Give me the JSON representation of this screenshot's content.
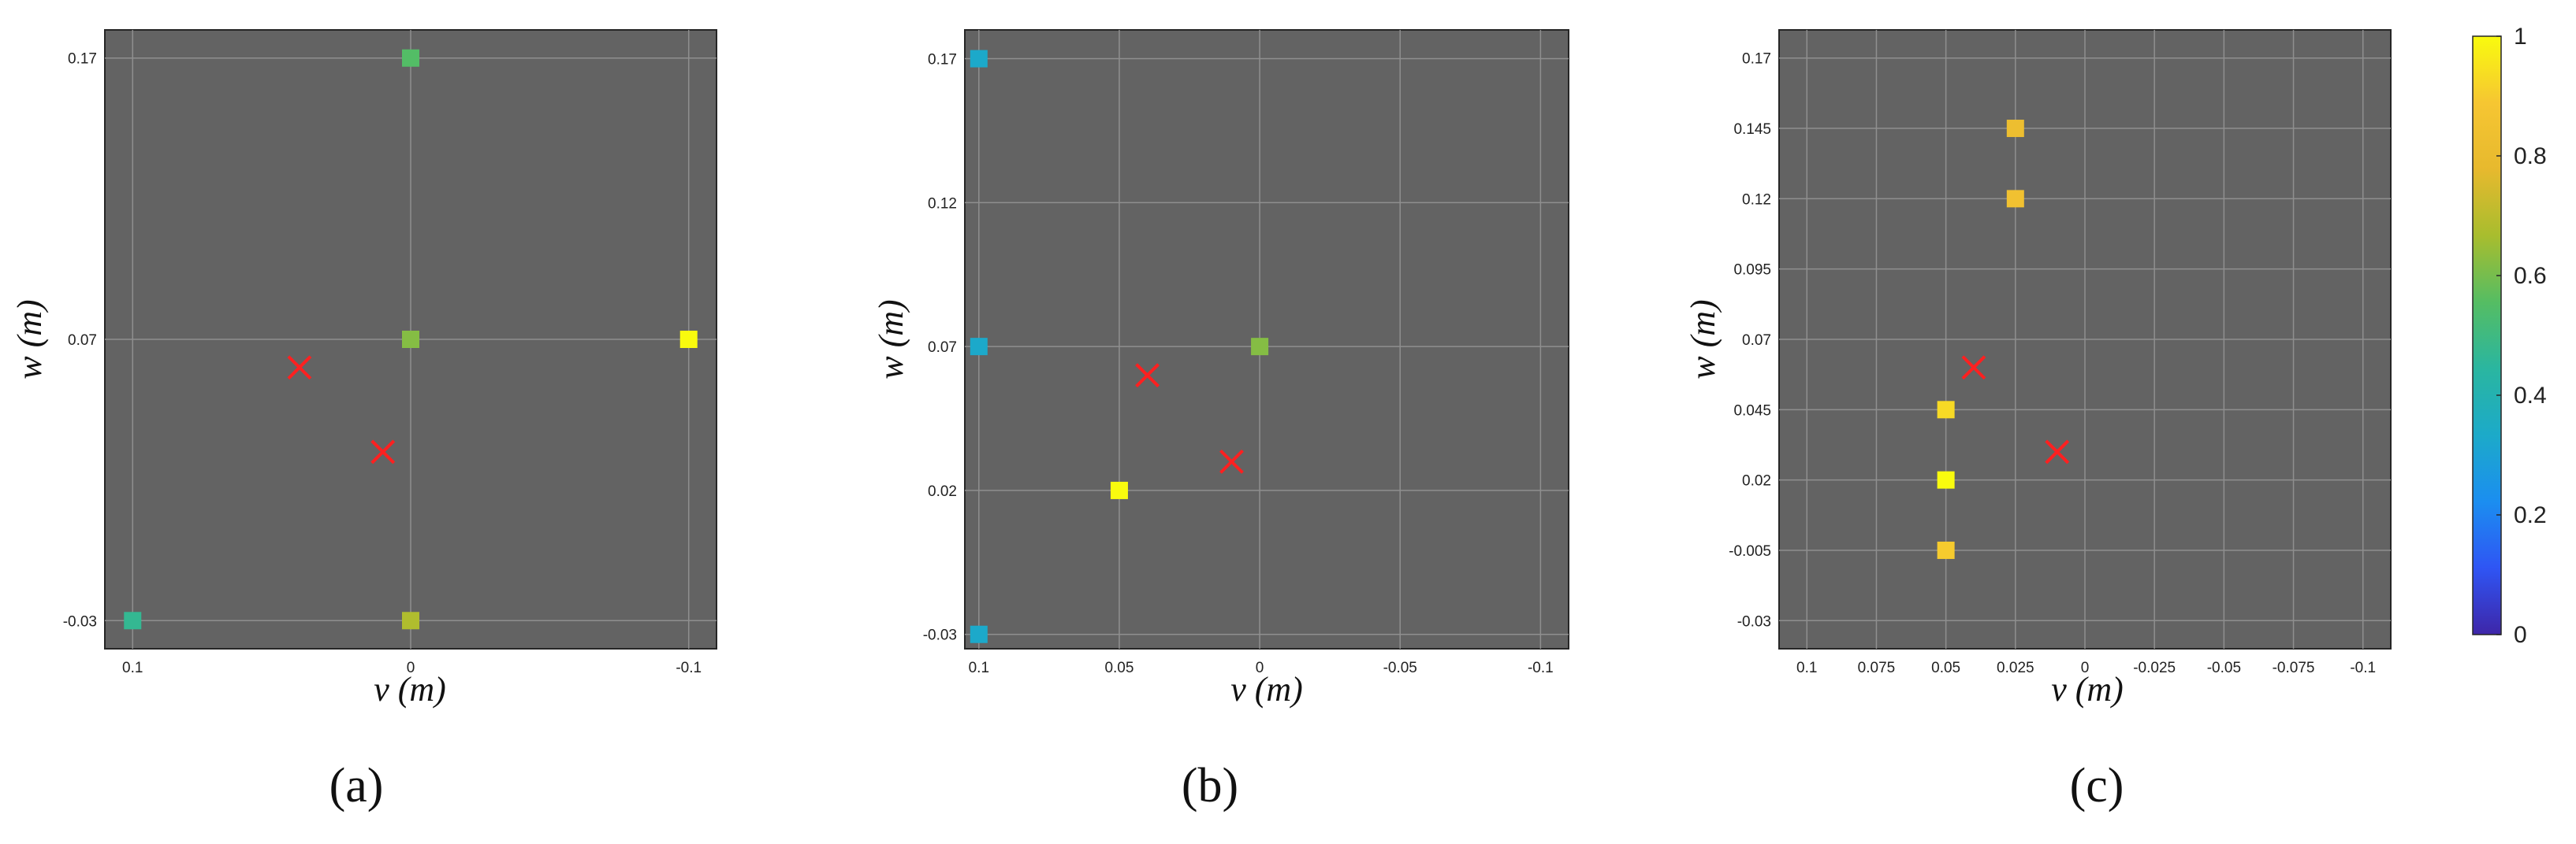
{
  "chart_data": [
    {
      "type": "scatter",
      "panel_label": "(a)",
      "xlabel": "v (m)",
      "ylabel": "w (m)",
      "xlim": [
        0.11,
        -0.11
      ],
      "ylim": [
        -0.04,
        0.18
      ],
      "x_reversed": true,
      "xticks": [
        0.1,
        0,
        -0.1
      ],
      "xtick_labels": [
        "0.1",
        "0",
        "-0.1"
      ],
      "yticks": [
        -0.03,
        0.07,
        0.17
      ],
      "ytick_labels": [
        "-0.03",
        "0.07",
        "0.17"
      ],
      "grid": true,
      "background": "#636363",
      "squares": [
        {
          "x": 0.0,
          "y": 0.17,
          "c": 0.55
        },
        {
          "x": 0.0,
          "y": 0.07,
          "c": 0.62
        },
        {
          "x": -0.1,
          "y": 0.07,
          "c": 1.0
        },
        {
          "x": 0.1,
          "y": -0.03,
          "c": 0.47
        },
        {
          "x": 0.0,
          "y": -0.03,
          "c": 0.68
        }
      ],
      "crosses": [
        {
          "x": 0.04,
          "y": 0.06
        },
        {
          "x": 0.01,
          "y": 0.03
        }
      ]
    },
    {
      "type": "scatter",
      "panel_label": "(b)",
      "xlabel": "v (m)",
      "ylabel": "w (m)",
      "xlim": [
        0.105,
        -0.11
      ],
      "ylim": [
        -0.035,
        0.18
      ],
      "x_reversed": true,
      "xticks": [
        0.1,
        0.05,
        0,
        -0.05,
        -0.1
      ],
      "xtick_labels": [
        "0.1",
        "0.05",
        "0",
        "-0.05",
        "-0.1"
      ],
      "yticks": [
        -0.03,
        0.02,
        0.07,
        0.12,
        0.17
      ],
      "ytick_labels": [
        "-0.03",
        "0.02",
        "0.07",
        "0.12",
        "0.17"
      ],
      "grid": true,
      "background": "#636363",
      "squares": [
        {
          "x": 0.1,
          "y": 0.17,
          "c": 0.33
        },
        {
          "x": 0.1,
          "y": 0.07,
          "c": 0.33
        },
        {
          "x": 0.0,
          "y": 0.07,
          "c": 0.62
        },
        {
          "x": 0.05,
          "y": 0.02,
          "c": 1.0
        },
        {
          "x": 0.1,
          "y": -0.03,
          "c": 0.33
        }
      ],
      "crosses": [
        {
          "x": 0.04,
          "y": 0.06
        },
        {
          "x": 0.01,
          "y": 0.03
        }
      ]
    },
    {
      "type": "scatter",
      "panel_label": "(c)",
      "xlabel": "v (m)",
      "ylabel": "w (m)",
      "xlim": [
        0.11,
        -0.11
      ],
      "ylim": [
        -0.04,
        0.18
      ],
      "x_reversed": true,
      "xticks": [
        0.1,
        0.075,
        0.05,
        0.025,
        0,
        -0.025,
        -0.05,
        -0.075,
        -0.1
      ],
      "xtick_labels": [
        "0.1",
        "0.075",
        "0.05",
        "0.025",
        "0",
        "-0.025",
        "-0.05",
        "-0.075",
        "-0.1"
      ],
      "yticks": [
        -0.03,
        -0.005,
        0.02,
        0.045,
        0.07,
        0.095,
        0.12,
        0.145,
        0.17
      ],
      "ytick_labels": [
        "-0.03",
        "-0.005",
        "0.02",
        "0.045",
        "0.07",
        "0.095",
        "0.12",
        "0.145",
        "0.17"
      ],
      "grid": true,
      "background": "#636363",
      "squares": [
        {
          "x": 0.025,
          "y": 0.145,
          "c": 0.82
        },
        {
          "x": 0.025,
          "y": 0.12,
          "c": 0.85
        },
        {
          "x": 0.05,
          "y": 0.045,
          "c": 0.93
        },
        {
          "x": 0.05,
          "y": 0.02,
          "c": 1.0
        },
        {
          "x": 0.05,
          "y": -0.005,
          "c": 0.9
        }
      ],
      "crosses": [
        {
          "x": 0.04,
          "y": 0.06
        },
        {
          "x": 0.01,
          "y": 0.03
        }
      ]
    }
  ],
  "colorbar": {
    "min": 0,
    "max": 1,
    "tick_labels": [
      "0",
      "0.2",
      "0.4",
      "0.6",
      "0.8",
      "1"
    ],
    "colormap": [
      "#3e26a8",
      "#2f55f4",
      "#1b8ef0",
      "#1caac9",
      "#2ab6a0",
      "#55bd63",
      "#a8bd2e",
      "#e7b92e",
      "#f6c632",
      "#f9fb0e"
    ]
  },
  "colors": {
    "cross": "#ff2020",
    "grid": "#8f8f8f",
    "panel_background": "#636363",
    "axis_frame": "#262626"
  }
}
